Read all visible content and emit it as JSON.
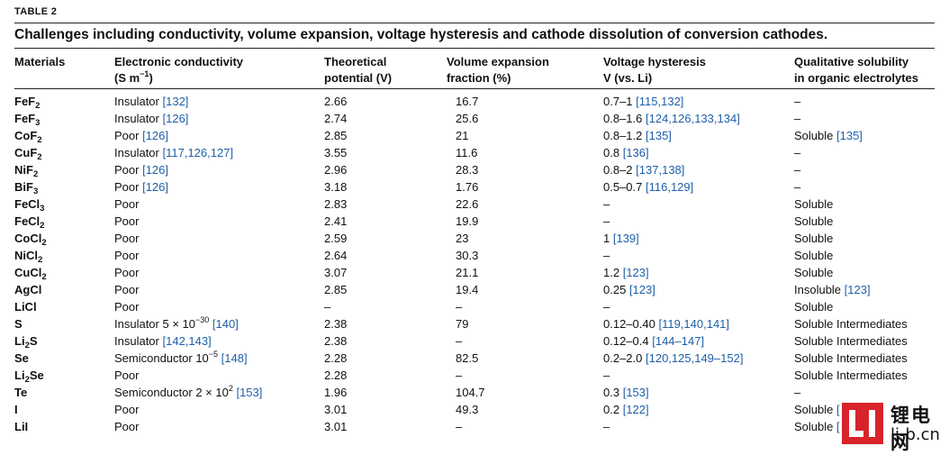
{
  "table_label": "TABLE 2",
  "caption": "Challenges including conductivity, volume expansion, voltage hysteresis and cathode dissolution of conversion cathodes.",
  "headers": {
    "materials": "Materials",
    "conductivity_l1": "Electronic conductivity",
    "conductivity_l2_pre": "(S m",
    "conductivity_l2_sup": "−1",
    "conductivity_l2_post": ")",
    "potential_l1": "Theoretical",
    "potential_l2": "potential (V)",
    "volume_l1": "Volume expansion",
    "volume_l2": "fraction (%)",
    "hysteresis_l1": "Voltage hysteresis",
    "hysteresis_l2": "V (vs. Li)",
    "solubility_l1": "Qualitative solubility",
    "solubility_l2": "in organic electrolytes"
  },
  "rows": [
    {
      "mat": "FeF",
      "sub": "2",
      "cond": "Insulator",
      "cond_ref": "[132]",
      "pot": "2.66",
      "vol": "16.7",
      "hys": "0.7–1",
      "hys_ref": "[115,132]",
      "sol": "–",
      "sol_ref": ""
    },
    {
      "mat": "FeF",
      "sub": "3",
      "cond": "Insulator",
      "cond_ref": "[126]",
      "pot": "2.74",
      "vol": "25.6",
      "hys": "0.8–1.6",
      "hys_ref": "[124,126,133,134]",
      "sol": "–",
      "sol_ref": ""
    },
    {
      "mat": "CoF",
      "sub": "2",
      "cond": "Poor",
      "cond_ref": "[126]",
      "pot": "2.85",
      "vol": "21",
      "hys": "0.8–1.2",
      "hys_ref": "[135]",
      "sol": "Soluble",
      "sol_ref": "[135]"
    },
    {
      "mat": "CuF",
      "sub": "2",
      "cond": "Insulator",
      "cond_ref": "[117,126,127]",
      "pot": "3.55",
      "vol": "11.6",
      "hys": "0.8",
      "hys_ref": "[136]",
      "sol": "–",
      "sol_ref": ""
    },
    {
      "mat": "NiF",
      "sub": "2",
      "cond": "Poor",
      "cond_ref": "[126]",
      "pot": "2.96",
      "vol": "28.3",
      "hys": "0.8–2",
      "hys_ref": "[137,138]",
      "sol": "–",
      "sol_ref": ""
    },
    {
      "mat": "BiF",
      "sub": "3",
      "cond": "Poor",
      "cond_ref": "[126]",
      "pot": "3.18",
      "vol": "1.76",
      "hys": "0.5–0.7",
      "hys_ref": "[116,129]",
      "sol": "–",
      "sol_ref": ""
    },
    {
      "mat": "FeCl",
      "sub": "3",
      "cond": "Poor",
      "cond_ref": "",
      "pot": "2.83",
      "vol": "22.6",
      "hys": "–",
      "hys_ref": "",
      "sol": "Soluble",
      "sol_ref": ""
    },
    {
      "mat": "FeCl",
      "sub": "2",
      "cond": "Poor",
      "cond_ref": "",
      "pot": "2.41",
      "vol": "19.9",
      "hys": "–",
      "hys_ref": "",
      "sol": "Soluble",
      "sol_ref": ""
    },
    {
      "mat": "CoCl",
      "sub": "2",
      "cond": "Poor",
      "cond_ref": "",
      "pot": "2.59",
      "vol": "23",
      "hys": "1",
      "hys_ref": "[139]",
      "sol": "Soluble",
      "sol_ref": ""
    },
    {
      "mat": "NiCl",
      "sub": "2",
      "cond": "Poor",
      "cond_ref": "",
      "pot": "2.64",
      "vol": "30.3",
      "hys": "–",
      "hys_ref": "",
      "sol": "Soluble",
      "sol_ref": ""
    },
    {
      "mat": "CuCl",
      "sub": "2",
      "cond": "Poor",
      "cond_ref": "",
      "pot": "3.07",
      "vol": "21.1",
      "hys": "1.2",
      "hys_ref": "[123]",
      "sol": "Soluble",
      "sol_ref": ""
    },
    {
      "mat": "AgCl",
      "sub": "",
      "cond": "Poor",
      "cond_ref": "",
      "pot": "2.85",
      "vol": "19.4",
      "hys": "0.25",
      "hys_ref": "[123]",
      "sol": "Insoluble",
      "sol_ref": "[123]"
    },
    {
      "mat": "LiCl",
      "sub": "",
      "cond": "Poor",
      "cond_ref": "",
      "pot": "–",
      "vol": "–",
      "hys": "–",
      "hys_ref": "",
      "sol": "Soluble",
      "sol_ref": ""
    },
    {
      "mat": "S",
      "sub": "",
      "cond": "Insulator 5 × 10",
      "cond_sup": "−30",
      "cond_ref": "[140]",
      "pot": "2.38",
      "vol": "79",
      "hys": "0.12–0.40",
      "hys_ref": "[119,140,141]",
      "sol": "Soluble Intermediates",
      "sol_ref": ""
    },
    {
      "mat": "Li",
      "sub": "2",
      "mat_tail": "S",
      "cond": "Insulator",
      "cond_ref": "[142,143]",
      "pot": "2.38",
      "vol": "–",
      "hys": "0.12–0.4",
      "hys_ref": "[144–147]",
      "sol": "Soluble Intermediates",
      "sol_ref": ""
    },
    {
      "mat": "Se",
      "sub": "",
      "cond": "Semiconductor 10",
      "cond_sup": "−5",
      "cond_ref": "[148]",
      "pot": "2.28",
      "vol": "82.5",
      "hys": "0.2–2.0",
      "hys_ref": "[120,125,149–152]",
      "sol": "Soluble Intermediates",
      "sol_ref": ""
    },
    {
      "mat": "Li",
      "sub": "2",
      "mat_tail": "Se",
      "cond": "Poor",
      "cond_ref": "",
      "pot": "2.28",
      "vol": "–",
      "hys": "–",
      "hys_ref": "",
      "sol": "Soluble Intermediates",
      "sol_ref": ""
    },
    {
      "mat": "Te",
      "sub": "",
      "cond": "Semiconductor 2 × 10",
      "cond_sup": "2",
      "cond_ref": "[153]",
      "pot": "1.96",
      "vol": "104.7",
      "hys": "0.3",
      "hys_ref": "[153]",
      "sol": "–",
      "sol_ref": ""
    },
    {
      "mat": "I",
      "sub": "",
      "cond": "Poor",
      "cond_ref": "",
      "pot": "3.01",
      "vol": "49.3",
      "hys": "0.2",
      "hys_ref": "[122]",
      "sol": "Soluble",
      "sol_ref": "["
    },
    {
      "mat": "LiI",
      "sub": "",
      "cond": "Poor",
      "cond_ref": "",
      "pot": "3.01",
      "vol": "–",
      "hys": "–",
      "hys_ref": "",
      "sol": "Soluble",
      "sol_ref": "["
    }
  ],
  "watermark": {
    "cn_text": "锂电网",
    "url_text": "li-b.cn",
    "color": "#d8232a"
  }
}
